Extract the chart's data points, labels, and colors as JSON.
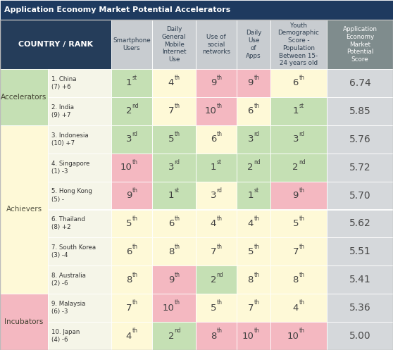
{
  "title": "Application Economy Market Potential Accelerators",
  "title_bg": "#1e3a5f",
  "header_bg_country": "#253d5a",
  "header_bg_data": "#c8ccd0",
  "header_bg_score": "#7f8c8d",
  "group_labels": [
    "Accelerators",
    "Achievers",
    "Incubators"
  ],
  "group_rows": [
    2,
    6,
    2
  ],
  "group_colors": [
    "#c5e0b4",
    "#fef9d7",
    "#f4b8c1"
  ],
  "country_col_bg": "#f5f5e8",
  "rows": [
    {
      "country": "1. China\n(7) +6",
      "vals": [
        "1",
        "4",
        "9",
        "9",
        "6"
      ],
      "suf": [
        "st",
        "th",
        "th",
        "th",
        "th"
      ],
      "cell_colors": [
        "#c5e0b4",
        "#fef9d7",
        "#f4b8c1",
        "#f4b8c1",
        "#fef9d7"
      ],
      "score": "6.74"
    },
    {
      "country": "2. India\n(9) +7",
      "vals": [
        "2",
        "7",
        "10",
        "6",
        "1"
      ],
      "suf": [
        "nd",
        "th",
        "th",
        "th",
        "st"
      ],
      "cell_colors": [
        "#c5e0b4",
        "#fef9d7",
        "#f4b8c1",
        "#fef9d7",
        "#c5e0b4"
      ],
      "score": "5.85"
    },
    {
      "country": "3. Indonesia\n(10) +7",
      "vals": [
        "3",
        "5",
        "6",
        "3",
        "3"
      ],
      "suf": [
        "rd",
        "th",
        "th",
        "rd",
        "rd"
      ],
      "cell_colors": [
        "#c5e0b4",
        "#c5e0b4",
        "#fef9d7",
        "#c5e0b4",
        "#c5e0b4"
      ],
      "score": "5.76"
    },
    {
      "country": "4. Singapore\n(1) -3",
      "vals": [
        "10",
        "3",
        "1",
        "2",
        "2"
      ],
      "suf": [
        "th",
        "rd",
        "st",
        "nd",
        "nd"
      ],
      "cell_colors": [
        "#f4b8c1",
        "#c5e0b4",
        "#c5e0b4",
        "#c5e0b4",
        "#c5e0b4"
      ],
      "score": "5.72"
    },
    {
      "country": "5. Hong Kong\n(5) -",
      "vals": [
        "9",
        "1",
        "3",
        "1",
        "9"
      ],
      "suf": [
        "th",
        "st",
        "rd",
        "st",
        "th"
      ],
      "cell_colors": [
        "#f4b8c1",
        "#c5e0b4",
        "#fef9d7",
        "#c5e0b4",
        "#f4b8c1"
      ],
      "score": "5.70"
    },
    {
      "country": "6. Thailand\n(8) +2",
      "vals": [
        "5",
        "6",
        "4",
        "4",
        "5"
      ],
      "suf": [
        "th",
        "th",
        "th",
        "th",
        "th"
      ],
      "cell_colors": [
        "#fef9d7",
        "#fef9d7",
        "#fef9d7",
        "#fef9d7",
        "#fef9d7"
      ],
      "score": "5.62"
    },
    {
      "country": "7. South Korea\n(3) -4",
      "vals": [
        "6",
        "8",
        "7",
        "5",
        "7"
      ],
      "suf": [
        "th",
        "th",
        "th",
        "th",
        "th"
      ],
      "cell_colors": [
        "#fef9d7",
        "#fef9d7",
        "#fef9d7",
        "#fef9d7",
        "#fef9d7"
      ],
      "score": "5.51"
    },
    {
      "country": "8. Australia\n(2) -6",
      "vals": [
        "8",
        "9",
        "2",
        "8",
        "8"
      ],
      "suf": [
        "th",
        "th",
        "nd",
        "th",
        "th"
      ],
      "cell_colors": [
        "#fef9d7",
        "#f4b8c1",
        "#c5e0b4",
        "#fef9d7",
        "#fef9d7"
      ],
      "score": "5.41"
    },
    {
      "country": "9. Malaysia\n(6) -3",
      "vals": [
        "7",
        "10",
        "5",
        "7",
        "4"
      ],
      "suf": [
        "th",
        "th",
        "th",
        "th",
        "th"
      ],
      "cell_colors": [
        "#fef9d7",
        "#f4b8c1",
        "#fef9d7",
        "#fef9d7",
        "#fef9d7"
      ],
      "score": "5.36"
    },
    {
      "country": "10. Japan\n(4) -6",
      "vals": [
        "4",
        "2",
        "8",
        "10",
        "10"
      ],
      "suf": [
        "th",
        "nd",
        "th",
        "th",
        "th"
      ],
      "cell_colors": [
        "#fef9d7",
        "#c5e0b4",
        "#f4b8c1",
        "#f4b8c1",
        "#f4b8c1"
      ],
      "score": "5.00"
    }
  ]
}
